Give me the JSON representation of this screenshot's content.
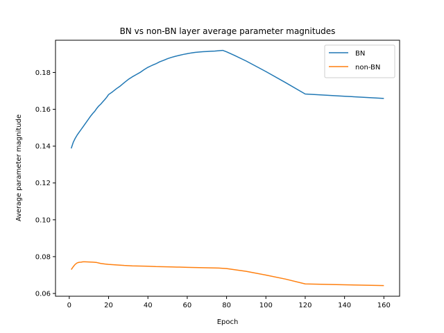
{
  "chart_data": {
    "type": "line",
    "title": "BN vs non-BN layer average parameter magnitudes",
    "xlabel": "Epoch",
    "ylabel": "Average parameter magnitude",
    "xlim": [
      -7,
      168
    ],
    "ylim": [
      0.0585,
      0.1975
    ],
    "xticks": [
      0,
      20,
      40,
      60,
      80,
      100,
      120,
      140,
      160
    ],
    "xtick_labels": [
      "0",
      "20",
      "40",
      "60",
      "80",
      "100",
      "120",
      "140",
      "160"
    ],
    "yticks": [
      0.06,
      0.08,
      0.1,
      0.12,
      0.14,
      0.16,
      0.18
    ],
    "ytick_labels": [
      "0.06",
      "0.08",
      "0.10",
      "0.12",
      "0.14",
      "0.16",
      "0.18"
    ],
    "grid": false,
    "legend_position": "top-right",
    "series": [
      {
        "name": "BN",
        "color": "#1f77b4",
        "points": [
          [
            1,
            0.1388
          ],
          [
            2,
            0.142
          ],
          [
            3,
            0.1442
          ],
          [
            4,
            0.146
          ],
          [
            5,
            0.1475
          ],
          [
            6,
            0.149
          ],
          [
            7,
            0.1505
          ],
          [
            8,
            0.152
          ],
          [
            9,
            0.1535
          ],
          [
            10,
            0.155
          ],
          [
            11,
            0.1565
          ],
          [
            12,
            0.1578
          ],
          [
            13,
            0.159
          ],
          [
            14,
            0.1605
          ],
          [
            15,
            0.1618
          ],
          [
            16,
            0.1628
          ],
          [
            17,
            0.164
          ],
          [
            18,
            0.1652
          ],
          [
            19,
            0.1665
          ],
          [
            20,
            0.168
          ],
          [
            22,
            0.1695
          ],
          [
            24,
            0.1712
          ],
          [
            26,
            0.1727
          ],
          [
            28,
            0.1745
          ],
          [
            30,
            0.1762
          ],
          [
            32,
            0.1776
          ],
          [
            34,
            0.1788
          ],
          [
            36,
            0.18
          ],
          [
            38,
            0.1815
          ],
          [
            40,
            0.1828
          ],
          [
            42,
            0.1838
          ],
          [
            44,
            0.1847
          ],
          [
            46,
            0.1858
          ],
          [
            48,
            0.1866
          ],
          [
            50,
            0.1875
          ],
          [
            52,
            0.1882
          ],
          [
            54,
            0.1888
          ],
          [
            56,
            0.1893
          ],
          [
            58,
            0.1898
          ],
          [
            60,
            0.1902
          ],
          [
            62,
            0.1906
          ],
          [
            64,
            0.1909
          ],
          [
            66,
            0.1911
          ],
          [
            68,
            0.1913
          ],
          [
            70,
            0.1914
          ],
          [
            72,
            0.1915
          ],
          [
            74,
            0.1916
          ],
          [
            76,
            0.1918
          ],
          [
            78,
            0.192
          ],
          [
            80,
            0.1912
          ],
          [
            84,
            0.1893
          ],
          [
            90,
            0.1862
          ],
          [
            100,
            0.1805
          ],
          [
            110,
            0.1745
          ],
          [
            120,
            0.1683
          ],
          [
            140,
            0.1671
          ],
          [
            160,
            0.1659
          ]
        ]
      },
      {
        "name": "non-BN",
        "color": "#ff7f0e",
        "points": [
          [
            1,
            0.073
          ],
          [
            2,
            0.0745
          ],
          [
            3,
            0.0758
          ],
          [
            4,
            0.0766
          ],
          [
            5,
            0.0769
          ],
          [
            6,
            0.077
          ],
          [
            7,
            0.0772
          ],
          [
            8,
            0.0772
          ],
          [
            10,
            0.0771
          ],
          [
            12,
            0.077
          ],
          [
            14,
            0.0768
          ],
          [
            16,
            0.0763
          ],
          [
            18,
            0.076
          ],
          [
            20,
            0.0758
          ],
          [
            24,
            0.0755
          ],
          [
            28,
            0.0752
          ],
          [
            32,
            0.075
          ],
          [
            36,
            0.0749
          ],
          [
            40,
            0.0748
          ],
          [
            44,
            0.0746
          ],
          [
            48,
            0.0745
          ],
          [
            52,
            0.0744
          ],
          [
            56,
            0.0743
          ],
          [
            60,
            0.0742
          ],
          [
            64,
            0.0741
          ],
          [
            68,
            0.074
          ],
          [
            72,
            0.0739
          ],
          [
            76,
            0.0738
          ],
          [
            80,
            0.0735
          ],
          [
            90,
            0.072
          ],
          [
            100,
            0.07
          ],
          [
            110,
            0.0678
          ],
          [
            120,
            0.0652
          ],
          [
            140,
            0.0647
          ],
          [
            160,
            0.0643
          ]
        ]
      }
    ]
  }
}
